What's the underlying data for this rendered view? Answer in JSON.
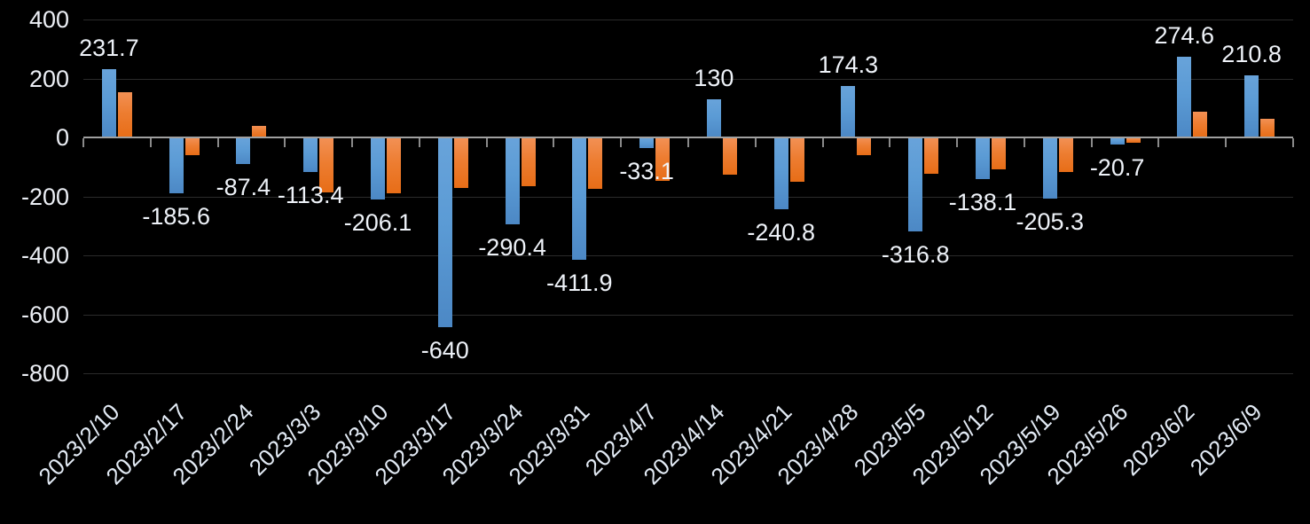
{
  "chart_data": {
    "type": "bar",
    "title": "",
    "xlabel": "",
    "ylabel": "",
    "categories": [
      "2023/2/10",
      "2023/2/17",
      "2023/2/24",
      "2023/3/3",
      "2023/3/10",
      "2023/3/17",
      "2023/3/24",
      "2023/3/31",
      "2023/4/7",
      "2023/4/14",
      "2023/4/21",
      "2023/4/28",
      "2023/5/5",
      "2023/5/12",
      "2023/5/19",
      "2023/5/26",
      "2023/6/2",
      "2023/6/9"
    ],
    "series": [
      {
        "name": "blue-series",
        "color": "#5B9BD5",
        "values": [
          231.7,
          -185.6,
          -87.4,
          -113.4,
          -206.1,
          -640,
          -290.4,
          -411.9,
          -33.1,
          130,
          -240.8,
          174.3,
          -316.8,
          -138.1,
          -205.3,
          -20.7,
          274.6,
          210.8
        ],
        "data_labels": [
          "231.7",
          "-185.6",
          "-87.4",
          "-113.4",
          "-206.1",
          "-640",
          "-290.4",
          "-411.9",
          "-33.1",
          "130",
          "-240.8",
          "174.3",
          "-316.8",
          "-138.1",
          "-205.3",
          "-20.7",
          "274.6",
          "210.8"
        ]
      },
      {
        "name": "orange-series",
        "color": "#ED7D31",
        "values": [
          153,
          -57,
          40,
          -182,
          -185,
          -168,
          -162,
          -172,
          -145,
          -122,
          -146,
          -57,
          -120,
          -105,
          -113,
          -15,
          87,
          62
        ],
        "data_labels": []
      }
    ],
    "yticks": [
      400,
      200,
      0,
      -200,
      -400,
      -600,
      -800
    ],
    "ylim": [
      -800,
      400
    ],
    "grid": true,
    "legend_position": "none",
    "background_color": "#000000",
    "gridline_color": "#2b2b2b",
    "axis_color": "#a0a0a0",
    "text_color": "#eef2f8"
  }
}
